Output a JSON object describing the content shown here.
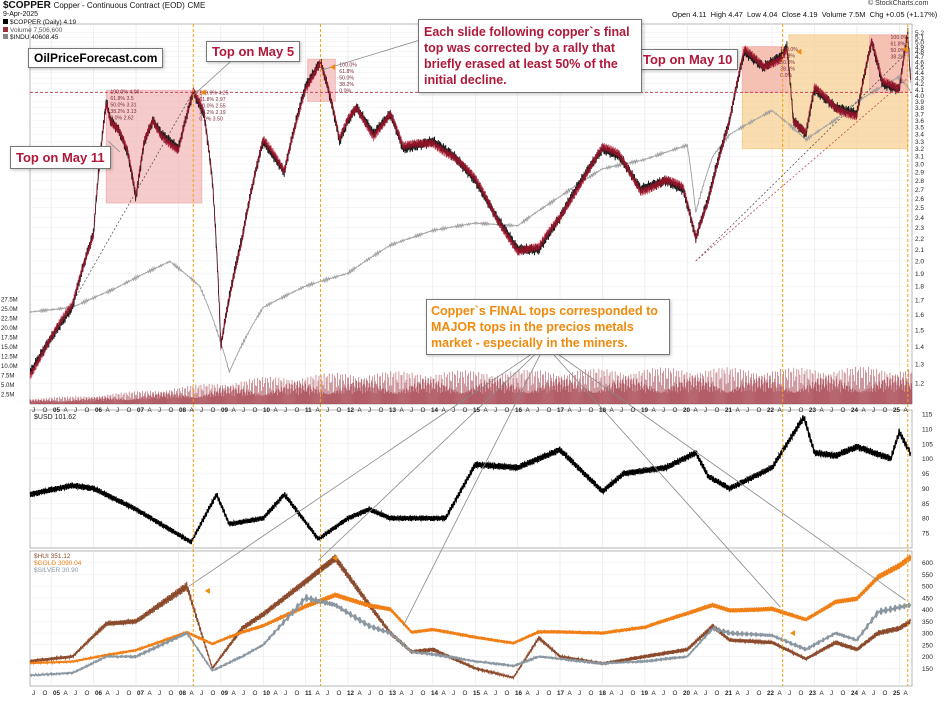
{
  "header": {
    "symbol": "$COPPER",
    "description": "Copper - Continuous Contract (EOD)",
    "exchange": "CME",
    "date": "9-Apr-2025",
    "credit": "© StockCharts.com",
    "ohlc": {
      "open_label": "Open",
      "open": "4.11",
      "high_label": "High",
      "high": "4.47",
      "low_label": "Low",
      "low": "4.04",
      "close_label": "Close",
      "close": "4.19",
      "volume_label": "Volume",
      "volume": "7.5M",
      "chg_label": "Chg",
      "chg": "+0.05 (+1.17%)"
    },
    "legend": [
      {
        "text": "$COPPER (Daily) 4.19",
        "color": "#000000"
      },
      {
        "text": "Volume 7,506,600",
        "color": "#9c2f3a"
      },
      {
        "text": "$INDU 40608.45",
        "color": "#888888"
      }
    ]
  },
  "watermark": "OilPriceForecast.com",
  "annotations": {
    "top_may11": "Top on May 11",
    "top_may5": "Top on May 5",
    "top_may10": "Top on May 10",
    "main_text": "Each slide following copper`s final top was corrected by a rally that briefly erased at least 50% of the initial decline.",
    "bottom_text": "Copper`s FINAL tops corresponded to MAJOR tops in the precios metals market - especially in the miners."
  },
  "colors": {
    "copper": "#1a1a1a",
    "copper_down": "#b0142e",
    "indu": "#9e9e9e",
    "volume": "#a23a45",
    "usd": "#000000",
    "hui": "#8b4a2b",
    "gold": "#f07f16",
    "silver": "#8a96a0",
    "box_red": "#f2b5b5",
    "box_orange": "#f7cf8f",
    "vline": "#f0a015",
    "annotation_red": "#b0183a",
    "annotation_orange": "#f08a0c"
  },
  "chart_data": [
    {
      "type": "line",
      "title": "$COPPER (Daily) 4.19",
      "panel": "price",
      "x": [
        2004.5,
        2005.0,
        2005.5,
        2006.0,
        2006.3,
        2006.4,
        2006.6,
        2006.8,
        2007.0,
        2007.2,
        2007.4,
        2007.6,
        2008.0,
        2008.35,
        2008.6,
        2008.8,
        2009.0,
        2009.5,
        2010.0,
        2010.5,
        2011.0,
        2011.2,
        2011.35,
        2011.5,
        2011.8,
        2012.0,
        2012.2,
        2012.6,
        2013.0,
        2013.3,
        2014.0,
        2014.5,
        2015.0,
        2015.5,
        2016.0,
        2016.5,
        2017.0,
        2017.5,
        2018.0,
        2018.4,
        2018.9,
        2019.5,
        2019.9,
        2020.2,
        2020.5,
        2021.0,
        2021.35,
        2021.8,
        2022.2,
        2022.35,
        2022.5,
        2022.8,
        2023.0,
        2023.5,
        2024.0,
        2024.35,
        2024.6,
        2025.0,
        2025.2,
        2025.27
      ],
      "values": [
        1.25,
        1.45,
        1.65,
        2.25,
        3.9,
        3.6,
        3.45,
        3.15,
        2.6,
        3.3,
        3.6,
        3.4,
        3.2,
        4.05,
        3.7,
        2.8,
        1.4,
        2.2,
        3.3,
        2.9,
        4.15,
        4.4,
        4.6,
        4.2,
        3.3,
        3.6,
        3.8,
        3.4,
        3.7,
        3.2,
        3.3,
        3.1,
        2.8,
        2.4,
        2.1,
        2.1,
        2.4,
        2.8,
        3.2,
        3.1,
        2.7,
        2.8,
        2.7,
        2.2,
        2.6,
        3.6,
        4.8,
        4.5,
        4.7,
        4.9,
        3.6,
        3.4,
        4.1,
        3.8,
        3.7,
        5.0,
        4.2,
        4.1,
        5.2,
        4.19
      ],
      "ylim": [
        1.1,
        5.3
      ],
      "yticks": [
        1.2,
        1.3,
        1.4,
        1.5,
        1.6,
        1.7,
        1.8,
        1.9,
        2.0,
        2.1,
        2.2,
        2.3,
        2.4,
        2.5,
        2.6,
        2.7,
        2.8,
        2.9,
        3.0,
        3.1,
        3.2,
        3.3,
        3.4,
        3.5,
        3.6,
        3.7,
        3.8,
        3.9,
        4.0,
        4.1,
        4.2,
        4.3,
        4.4,
        4.5,
        4.6,
        4.7,
        4.8,
        4.9,
        5.0,
        5.1,
        5.2
      ],
      "x_ticks": [
        "J",
        "O",
        "05",
        "A",
        "J",
        "O",
        "06",
        "A",
        "J",
        "O",
        "07",
        "A",
        "J",
        "O",
        "08",
        "A",
        "J",
        "O",
        "09",
        "A",
        "J",
        "O",
        "10",
        "A",
        "J",
        "O",
        "11",
        "A",
        "J",
        "O",
        "12",
        "A",
        "J",
        "O",
        "13",
        "A",
        "J",
        "O",
        "14",
        "A",
        "J",
        "O",
        "15",
        "A",
        "J",
        "O",
        "16",
        "A",
        "J",
        "O",
        "17",
        "A",
        "J",
        "O",
        "18",
        "A",
        "J",
        "O",
        "19",
        "A",
        "J",
        "O",
        "20",
        "A",
        "J",
        "O",
        "21",
        "A",
        "J",
        "O",
        "22",
        "A",
        "J",
        "O",
        "23",
        "A",
        "J",
        "O",
        "24",
        "A",
        "J",
        "O",
        "25",
        "A"
      ],
      "fib_levels": [
        {
          "labels": [
            "100.0% 4.06",
            "61.8% 3.5",
            "50.0% 3.31",
            "38.2% 3.13",
            "0.0% 2.62"
          ]
        },
        {
          "labels": [
            "100.0% 4.25",
            "61.8% 2.97",
            "50.0% 2.55",
            "38.2% 2.19",
            "0.0% 3.50"
          ]
        },
        {
          "labels": [
            "100.0%",
            "61.8%",
            "50.0%",
            "38.2%",
            "0.0%"
          ]
        },
        {
          "labels": [
            "100.0%",
            "61.8%",
            "50.0%",
            "38.2%",
            "0.0%"
          ]
        },
        {
          "labels": [
            "100.0%",
            "61.8%",
            "50.0%",
            "38.2%"
          ]
        }
      ]
    },
    {
      "type": "line",
      "title": "$INDU 40608.45",
      "panel": "price-overlay",
      "x": [
        2004.5,
        2005.5,
        2006.5,
        2007.8,
        2008.5,
        2009.2,
        2010.0,
        2011.0,
        2012.0,
        2013.0,
        2014.0,
        2015.0,
        2016.0,
        2017.0,
        2018.0,
        2019.0,
        2020.0,
        2020.2,
        2020.6,
        2021.0,
        2022.0,
        2022.8,
        2023.5,
        2024.0,
        2025.0,
        2025.27
      ],
      "values": [
        10200,
        10500,
        11800,
        14000,
        12000,
        7000,
        10500,
        12000,
        13000,
        15500,
        17000,
        17800,
        17500,
        21000,
        25000,
        26500,
        29000,
        19000,
        27000,
        31000,
        36000,
        30000,
        34000,
        38000,
        44500,
        40600
      ]
    },
    {
      "type": "bar",
      "title": "Volume 7,506,600",
      "panel": "volume",
      "ylim": [
        0,
        30000000
      ],
      "ytick_labels": [
        "2.5M",
        "5.0M",
        "7.5M",
        "10.0M",
        "12.5M",
        "15.0M",
        "17.5M",
        "20.0M",
        "22.5M",
        "25.0M",
        "27.5M"
      ],
      "x": [
        2004.5,
        2006.0,
        2008.0,
        2010.0,
        2012.0,
        2014.0,
        2016.0,
        2018.0,
        2020.0,
        2022.0,
        2024.0,
        2025.27
      ],
      "values": [
        1200000,
        1800000,
        3500000,
        5500000,
        6500000,
        6800000,
        7000000,
        7200000,
        7500000,
        7300000,
        7600000,
        7500000
      ]
    },
    {
      "type": "line",
      "title": "$USD 101.62",
      "panel": "usd",
      "ylim": [
        70,
        115
      ],
      "yticks": [
        75,
        80,
        85,
        90,
        95,
        100,
        105,
        110,
        115
      ],
      "x": [
        2004.5,
        2005.5,
        2006.0,
        2007.0,
        2008.3,
        2008.9,
        2009.2,
        2010.0,
        2010.5,
        2011.3,
        2012.0,
        2012.5,
        2013.0,
        2014.3,
        2015.0,
        2016.0,
        2017.0,
        2018.0,
        2018.5,
        2019.5,
        2020.2,
        2020.5,
        2021.0,
        2022.0,
        2022.75,
        2023.0,
        2023.5,
        2024.0,
        2024.8,
        2025.0,
        2025.27
      ],
      "values": [
        88,
        91,
        90,
        83,
        72,
        88,
        78,
        80,
        88,
        73,
        80,
        83,
        80,
        80,
        98,
        97,
        103,
        89,
        95,
        97,
        102,
        94,
        90,
        97,
        114,
        102,
        101,
        104,
        100,
        109,
        101.62
      ]
    },
    {
      "type": "line",
      "title": "$HUI / $GOLD / $SILVER",
      "panel": "metals",
      "ylim": [
        100,
        650
      ],
      "yticks": [
        150,
        200,
        250,
        300,
        350,
        400,
        450,
        500,
        550,
        600
      ],
      "x": [
        2004.5,
        2005.5,
        2006.3,
        2007.0,
        2008.2,
        2008.8,
        2009.5,
        2010.0,
        2011.0,
        2011.7,
        2012.5,
        2013.0,
        2013.5,
        2014.0,
        2015.0,
        2015.9,
        2016.5,
        2017.0,
        2018.0,
        2019.0,
        2020.0,
        2020.6,
        2021.0,
        2022.0,
        2022.8,
        2023.5,
        2024.0,
        2024.5,
        2025.0,
        2025.27
      ],
      "series": [
        {
          "name": "$HUI 351.12",
          "values": [
            180,
            200,
            340,
            350,
            500,
            150,
            320,
            380,
            520,
            620,
            420,
            300,
            220,
            230,
            150,
            110,
            280,
            200,
            170,
            200,
            230,
            330,
            270,
            260,
            190,
            260,
            230,
            300,
            320,
            351.12
          ]
        },
        {
          "name": "$GOLD 3090.04",
          "values": [
            170,
            180,
            210,
            230,
            300,
            250,
            300,
            330,
            420,
            470,
            420,
            400,
            300,
            310,
            280,
            260,
            310,
            310,
            300,
            320,
            380,
            420,
            400,
            410,
            360,
            430,
            440,
            530,
            580,
            618
          ]
        },
        {
          "name": "$SILVER 30.90",
          "values": [
            120,
            130,
            200,
            200,
            300,
            140,
            200,
            250,
            450,
            420,
            330,
            300,
            220,
            210,
            180,
            160,
            200,
            190,
            170,
            180,
            200,
            320,
            300,
            290,
            230,
            300,
            270,
            390,
            410,
            420
          ]
        }
      ]
    }
  ]
}
